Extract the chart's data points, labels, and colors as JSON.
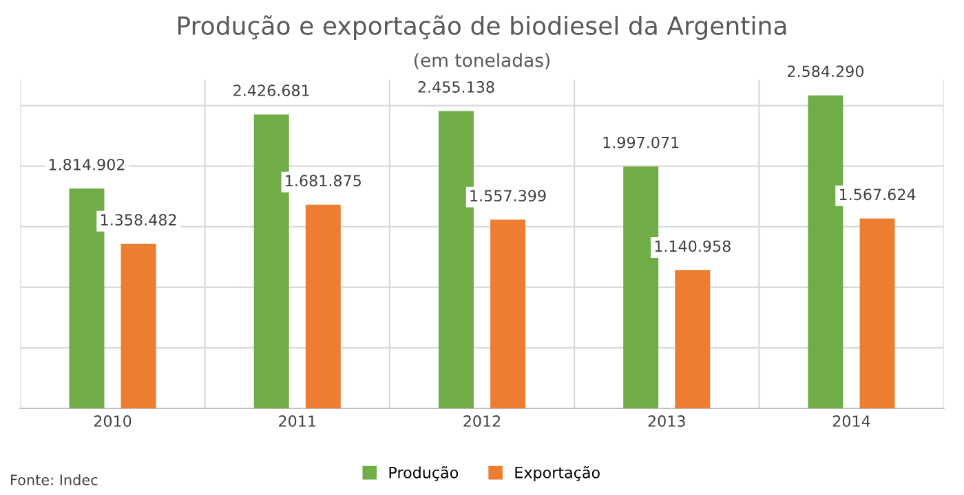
{
  "chart_data": {
    "type": "bar",
    "title": "Produção e exportação de biodiesel da Argentina",
    "subtitle": "(em toneladas)",
    "categories": [
      "2010",
      "2011",
      "2012",
      "2013",
      "2014"
    ],
    "series": [
      {
        "name": "Produção",
        "color": "#70ad47",
        "values": [
          1814902,
          2426681,
          2455138,
          1997071,
          2584290
        ],
        "value_labels": [
          "1.814.902",
          "2.426.681",
          "2.455.138",
          "1.997.071",
          "2.584.290"
        ]
      },
      {
        "name": "Exportação",
        "color": "#ed7d31",
        "values": [
          1358482,
          1681875,
          1557399,
          1140958,
          1567624
        ],
        "value_labels": [
          "1.358.482",
          "1.681.875",
          "1.557.399",
          "1.140.958",
          "1.567.624"
        ]
      }
    ],
    "tick_labels": "x",
    "grid": true,
    "legend": "bottom",
    "annotations": [
      "Fonte: Indec"
    ]
  }
}
